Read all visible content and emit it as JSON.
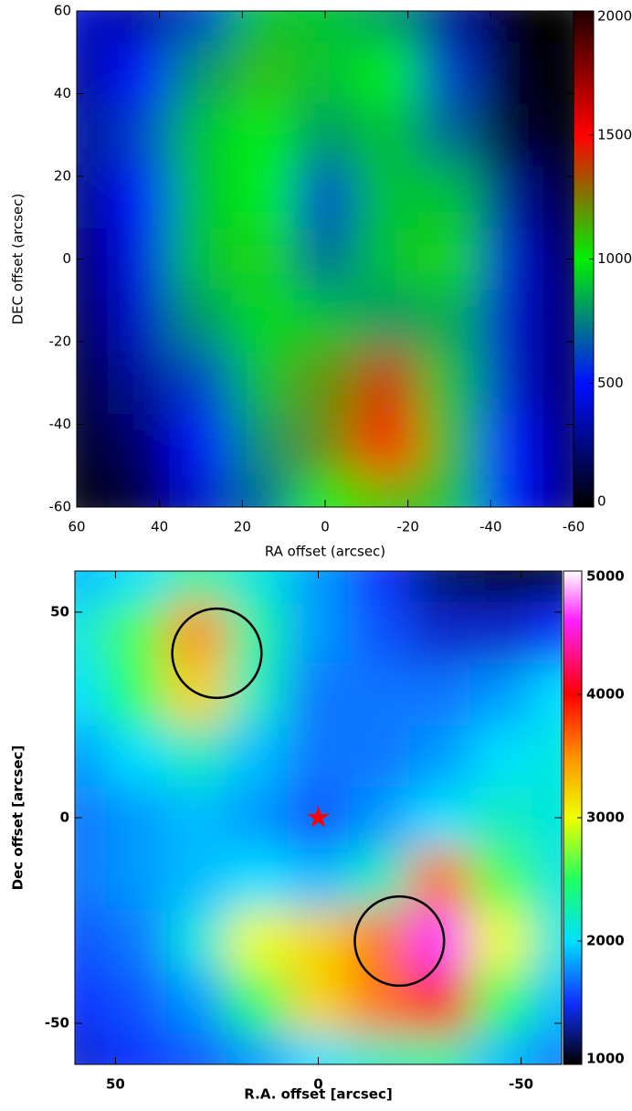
{
  "chart_data": [
    {
      "type": "heatmap",
      "xlabel": "RA offset (arcsec)",
      "ylabel": "DEC offset (arcsec)",
      "xlim": [
        60,
        -60
      ],
      "ylim": [
        -60,
        60
      ],
      "xticks": [
        60,
        40,
        20,
        0,
        -20,
        -40,
        -60
      ],
      "yticks": [
        -60,
        -40,
        -20,
        0,
        20,
        40,
        60
      ],
      "x": [
        60,
        45,
        30,
        15,
        0,
        -15,
        -30,
        -45,
        -60
      ],
      "y": [
        60,
        45,
        30,
        15,
        0,
        -15,
        -30,
        -45,
        -60
      ],
      "values": [
        [
          400,
          300,
          600,
          900,
          900,
          800,
          300,
          0,
          0
        ],
        [
          300,
          500,
          800,
          1100,
          900,
          1000,
          600,
          50,
          0
        ],
        [
          300,
          600,
          900,
          1000,
          800,
          900,
          700,
          100,
          0
        ],
        [
          250,
          500,
          900,
          1000,
          600,
          900,
          900,
          300,
          50
        ],
        [
          200,
          450,
          900,
          1050,
          700,
          900,
          1050,
          400,
          150
        ],
        [
          150,
          400,
          800,
          950,
          900,
          800,
          850,
          400,
          200
        ],
        [
          100,
          300,
          600,
          900,
          1200,
          1400,
          900,
          400,
          200
        ],
        [
          50,
          200,
          500,
          800,
          1200,
          1500,
          1100,
          500,
          200
        ],
        [
          0,
          100,
          400,
          700,
          1000,
          1100,
          900,
          500,
          200
        ]
      ],
      "clim": [
        0,
        2000
      ],
      "cticks": [
        0,
        500,
        1000,
        1500,
        2000
      ],
      "colorscale": [
        [
          0,
          "#000000"
        ],
        [
          500,
          "#0010ff"
        ],
        [
          1000,
          "#00f000"
        ],
        [
          1500,
          "#ff0000"
        ],
        [
          2000,
          "#200000"
        ]
      ]
    },
    {
      "type": "heatmap",
      "xlabel": "R.A. offset [arcsec]",
      "ylabel": "Dec offset [arcsec]",
      "xlim": [
        60,
        -60
      ],
      "ylim": [
        -60,
        60
      ],
      "xticks": [
        50,
        0,
        -50
      ],
      "yticks": [
        -50,
        0,
        50
      ],
      "x": [
        60,
        45,
        30,
        15,
        0,
        -15,
        -30,
        -45,
        -60
      ],
      "y": [
        60,
        45,
        30,
        15,
        0,
        -15,
        -30,
        -45,
        -60
      ],
      "values": [
        [
          1900,
          2000,
          2300,
          2100,
          1800,
          1500,
          1200,
          1000,
          1000
        ],
        [
          2100,
          2600,
          3500,
          2300,
          1800,
          1600,
          1400,
          1400,
          1500
        ],
        [
          2000,
          2500,
          3200,
          2200,
          1700,
          1700,
          1700,
          1800,
          2000
        ],
        [
          1800,
          2000,
          2200,
          1900,
          1700,
          1700,
          1800,
          2000,
          2100
        ],
        [
          1700,
          1800,
          1900,
          1800,
          1600,
          1800,
          2000,
          2200,
          2100
        ],
        [
          1700,
          1800,
          1900,
          2000,
          1900,
          2200,
          3600,
          2600,
          2100
        ],
        [
          1600,
          1700,
          2100,
          3000,
          3200,
          3600,
          4600,
          3000,
          2100
        ],
        [
          1500,
          1600,
          1800,
          2500,
          3200,
          3600,
          4000,
          2500,
          1900
        ],
        [
          1400,
          1500,
          1600,
          1800,
          2000,
          2200,
          2300,
          1900,
          1700
        ]
      ],
      "clim": [
        1000,
        5000
      ],
      "cticks": [
        1000,
        2000,
        3000,
        4000,
        5000
      ],
      "colorscale": [
        [
          1000,
          "#000000"
        ],
        [
          1500,
          "#1030ff"
        ],
        [
          2000,
          "#00e0ff"
        ],
        [
          2500,
          "#20ff60"
        ],
        [
          3000,
          "#f0ff00"
        ],
        [
          3500,
          "#ff9000"
        ],
        [
          4000,
          "#ff0000"
        ],
        [
          4600,
          "#ff20ff"
        ],
        [
          5000,
          "#ffffff"
        ]
      ],
      "circles": [
        {
          "x": 25,
          "y": 40,
          "r": 11
        },
        {
          "x": -20,
          "y": -30,
          "r": 11
        }
      ],
      "star": {
        "x": 0,
        "y": 0
      }
    }
  ]
}
